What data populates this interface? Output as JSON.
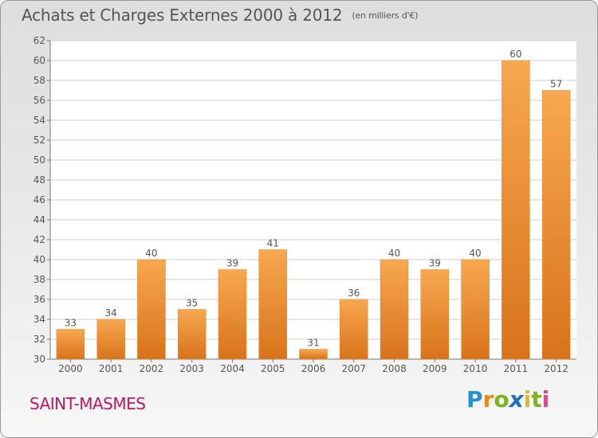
{
  "title": "Achats et Charges Externes 2000 à 2012",
  "subtitle": "(en milliers d'€)",
  "commune": "SAINT-MASMES",
  "logo": "Proxiti",
  "colors": {
    "bar_top": "#f7a850",
    "bar_bottom": "#d9731b",
    "grid": "#cfcfcf",
    "axis": "#555555",
    "commune": "#c2185b"
  },
  "chart_data": {
    "type": "bar",
    "title": "Achats et Charges Externes 2000 à 2012",
    "subtitle": "(en milliers d'€)",
    "categories": [
      "2000",
      "2001",
      "2002",
      "2003",
      "2004",
      "2005",
      "2006",
      "2007",
      "2008",
      "2009",
      "2010",
      "2011",
      "2012"
    ],
    "values": [
      33,
      34,
      40,
      35,
      39,
      41,
      31,
      36,
      40,
      39,
      40,
      60,
      57
    ],
    "ylim": [
      30,
      62
    ],
    "yticks": [
      30,
      32,
      34,
      36,
      38,
      40,
      42,
      44,
      46,
      48,
      50,
      52,
      54,
      56,
      58,
      60,
      62
    ],
    "grid": true,
    "data_labels": true
  }
}
